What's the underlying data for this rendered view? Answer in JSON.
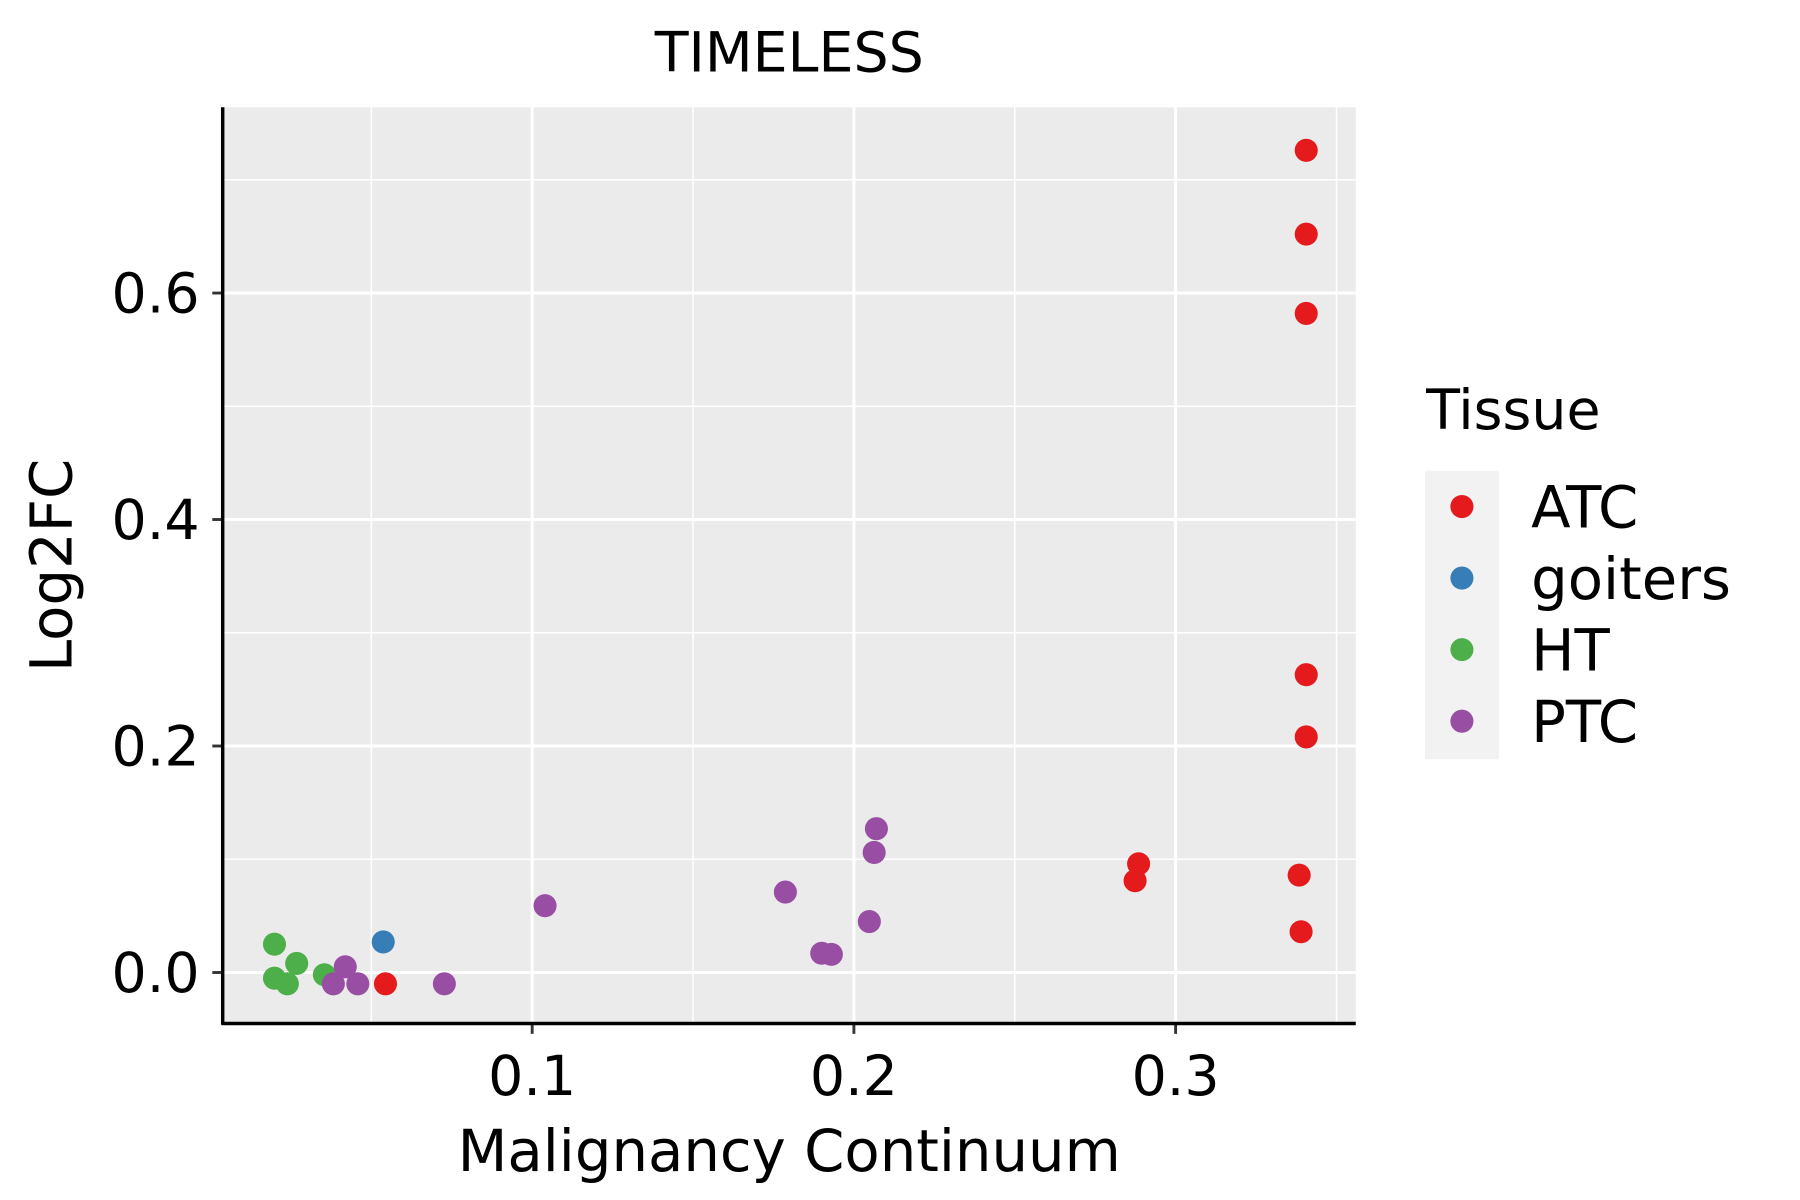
{
  "chart_data": {
    "type": "scatter",
    "title": "TIMELESS",
    "xlabel": "Malignancy Continuum",
    "ylabel": "Log2FC",
    "xlim": [
      0.0038,
      0.356
    ],
    "ylim": [
      -0.045,
      0.764
    ],
    "xticks": [
      0.1,
      0.2,
      0.3
    ],
    "xtick_labels": [
      "0.1",
      "0.2",
      "0.3"
    ],
    "yticks": [
      0.0,
      0.2,
      0.4,
      0.6
    ],
    "ytick_labels": [
      "0.0",
      "0.2",
      "0.4",
      "0.6"
    ],
    "grid": true,
    "legend": {
      "title": "Tissue",
      "placement": "right"
    },
    "series": [
      {
        "name": "ATC",
        "color": "#E41A1C",
        "points": [
          [
            0.3406,
            0.726
          ],
          [
            0.3406,
            0.652
          ],
          [
            0.3406,
            0.582
          ],
          [
            0.3406,
            0.263
          ],
          [
            0.3406,
            0.208
          ],
          [
            0.3384,
            0.086
          ],
          [
            0.339,
            0.036
          ],
          [
            0.2885,
            0.096
          ],
          [
            0.2874,
            0.081
          ],
          [
            0.0544,
            -0.01
          ]
        ]
      },
      {
        "name": "goiters",
        "color": "#377EB8",
        "points": [
          [
            0.0537,
            0.027
          ]
        ]
      },
      {
        "name": "HT",
        "color": "#4DAF4A",
        "points": [
          [
            0.0199,
            0.025
          ],
          [
            0.0268,
            0.008
          ],
          [
            0.0199,
            -0.005
          ],
          [
            0.0239,
            -0.01
          ],
          [
            0.0354,
            -0.002
          ]
        ]
      },
      {
        "name": "PTC",
        "color": "#984EA3",
        "points": [
          [
            0.0419,
            0.005
          ],
          [
            0.0382,
            -0.01
          ],
          [
            0.0458,
            -0.01
          ],
          [
            0.0727,
            -0.01
          ],
          [
            0.104,
            0.059
          ],
          [
            0.1787,
            0.071
          ],
          [
            0.19,
            0.017
          ],
          [
            0.193,
            0.016
          ],
          [
            0.2048,
            0.045
          ],
          [
            0.2063,
            0.106
          ],
          [
            0.207,
            0.127
          ]
        ]
      }
    ]
  }
}
